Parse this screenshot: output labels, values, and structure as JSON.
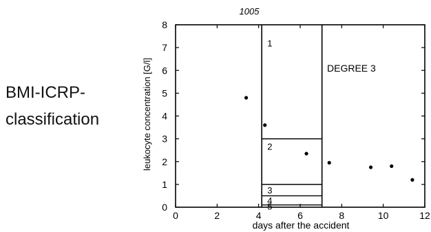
{
  "side_label": {
    "line1": "BMI-ICRP-",
    "line2": "classification"
  },
  "chart_data": {
    "type": "scatter",
    "title": "1005",
    "xlabel": "days after the accident",
    "ylabel": "leukocyte concentration [G/l]",
    "xlim": [
      0,
      12
    ],
    "ylim": [
      0,
      8
    ],
    "xticks": [
      0,
      2,
      4,
      6,
      8,
      10,
      12
    ],
    "xtick_labels": [
      "0",
      "2",
      "4",
      "6",
      "8",
      "10",
      "12"
    ],
    "yticks": [
      0,
      1,
      2,
      3,
      4,
      5,
      6,
      7,
      8
    ],
    "ytick_labels": [
      "0",
      "1",
      "2",
      "3",
      "4",
      "5",
      "6",
      "7",
      "8"
    ],
    "grid": false,
    "points": [
      {
        "x": 3.4,
        "y": 4.8
      },
      {
        "x": 4.3,
        "y": 3.6
      },
      {
        "x": 6.3,
        "y": 2.35
      },
      {
        "x": 7.4,
        "y": 1.95
      },
      {
        "x": 9.4,
        "y": 1.75
      },
      {
        "x": 10.4,
        "y": 1.8
      },
      {
        "x": 11.4,
        "y": 1.2
      }
    ],
    "classification_box": {
      "x_range": [
        4.15,
        7.05
      ],
      "regions": [
        {
          "label": "1",
          "y_range": [
            3,
            8
          ]
        },
        {
          "label": "2",
          "y_range": [
            1,
            3
          ]
        },
        {
          "label": "3",
          "y_range": [
            0.5,
            1
          ]
        },
        {
          "label": "4",
          "y_range": [
            0.1,
            0.5
          ]
        },
        {
          "label": "5",
          "y_range": [
            0,
            0.1
          ]
        }
      ]
    },
    "annotation": "DEGREE 3",
    "point_color": "#000000",
    "line_color": "#000000"
  }
}
